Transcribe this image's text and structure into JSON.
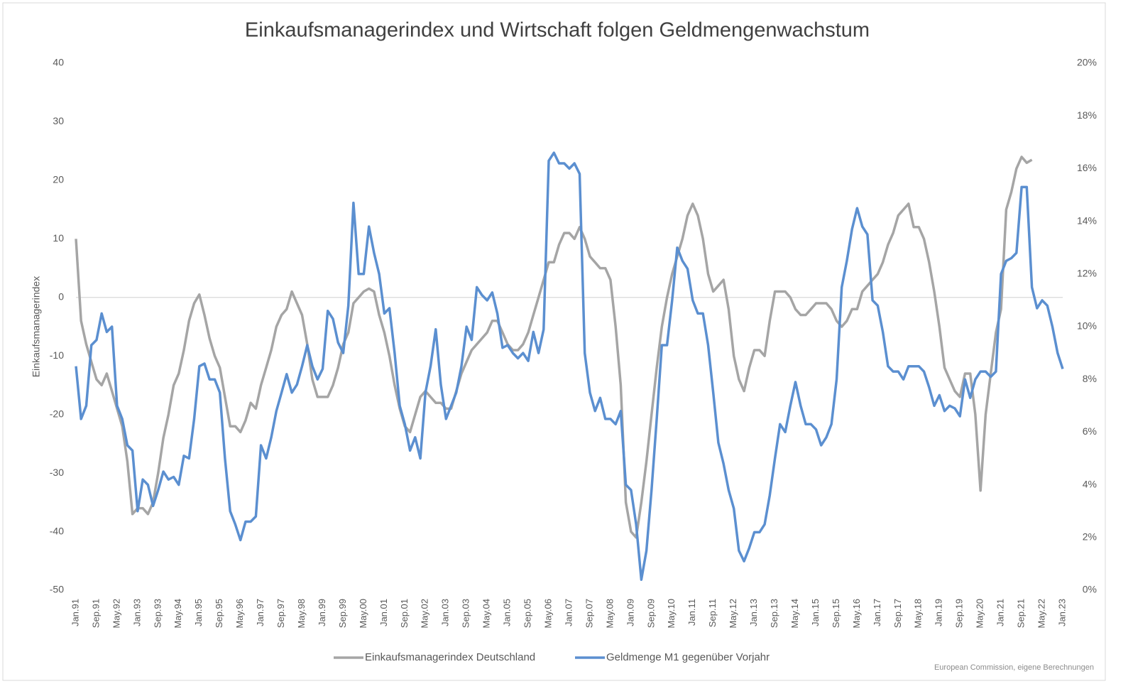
{
  "chart_data": {
    "type": "line",
    "title": "Einkaufsmanagerindex und Wirtschaft folgen Geldmengenwachstum",
    "y_label": "Einkaufsmanagerindex",
    "source": "European Commission, eigene Berechnungen",
    "categories": [
      "Jan.91",
      null,
      null,
      null,
      "Sep.91",
      null,
      null,
      null,
      "May.92",
      null,
      null,
      null,
      "Jan.93",
      null,
      null,
      null,
      "Sep.93",
      null,
      null,
      null,
      "May.94",
      null,
      null,
      null,
      "Jan.95",
      null,
      null,
      null,
      "Sep.95",
      null,
      null,
      null,
      "May.96",
      null,
      null,
      null,
      "Jan.97",
      null,
      null,
      null,
      "Sep.97",
      null,
      null,
      null,
      "May.98",
      null,
      null,
      null,
      "Jan.99",
      null,
      null,
      null,
      "Sep.99",
      null,
      null,
      null,
      "May.00",
      null,
      null,
      null,
      "Jan.01",
      null,
      null,
      null,
      "Sep.01",
      null,
      null,
      null,
      "May.02",
      null,
      null,
      null,
      "Jan.03",
      null,
      null,
      null,
      "Sep.03",
      null,
      null,
      null,
      "May.04",
      null,
      null,
      null,
      "Jan.05",
      null,
      null,
      null,
      "Sep.05",
      null,
      null,
      null,
      "May.06",
      null,
      null,
      null,
      "Jan.07",
      null,
      null,
      null,
      "Sep.07",
      null,
      null,
      null,
      "May.08",
      null,
      null,
      null,
      "Jan.09",
      null,
      null,
      null,
      "Sep.09",
      null,
      null,
      null,
      "May.10",
      null,
      null,
      null,
      "Jan.11",
      null,
      null,
      null,
      "Sep.11",
      null,
      null,
      null,
      "May.12",
      null,
      null,
      null,
      "Jan.13",
      null,
      null,
      null,
      "Sep.13",
      null,
      null,
      null,
      "May.14",
      null,
      null,
      null,
      "Jan.15",
      null,
      null,
      null,
      "Sep.15",
      null,
      null,
      null,
      "May.16",
      null,
      null,
      null,
      "Jan.17",
      null,
      null,
      null,
      "Sep.17",
      null,
      null,
      null,
      "May.18",
      null,
      null,
      null,
      "Jan.19",
      null,
      null,
      null,
      "Sep.19",
      null,
      null,
      null,
      "May.20",
      null,
      null,
      null,
      "Jan.21",
      null,
      null,
      null,
      "Sep.21",
      null,
      null,
      null,
      "May.22",
      null,
      null,
      null,
      "Jan.23"
    ],
    "series": [
      {
        "name": "Einkaufsmanagerindex Deutschland",
        "color": "#a5a5a5",
        "values": [
          10,
          -4,
          -8,
          -11,
          -14,
          -15,
          -13,
          -16,
          -19,
          -22,
          -28,
          -37,
          -36,
          -36,
          -37,
          -35,
          -30,
          -24,
          -20,
          -15,
          -13,
          -9,
          -4,
          -1,
          0.5,
          -3,
          -7,
          -10,
          -12,
          -17,
          -22,
          -22,
          -23,
          -21,
          -18,
          -19,
          -15,
          -12,
          -9,
          -5,
          -3,
          -2,
          1,
          -1,
          -3,
          -8,
          -14,
          -17,
          -17,
          -17,
          -15,
          -12,
          -8,
          -6,
          -1,
          0,
          1,
          1.5,
          1,
          -3,
          -6,
          -10,
          -15,
          -19,
          -22,
          -23,
          -20,
          -17,
          -16,
          -17,
          -18,
          -18,
          -19,
          -19,
          -16,
          -13,
          -11,
          -9,
          -8,
          -7,
          -6,
          -4,
          -4,
          -6,
          -8,
          -9,
          -9,
          -8,
          -6,
          -3,
          0,
          3,
          6,
          6,
          9,
          11,
          11,
          10,
          12,
          10,
          7,
          6,
          5,
          5,
          3,
          -5,
          -15,
          -35,
          -40,
          -41,
          -35,
          -28,
          -20,
          -12,
          -5,
          0,
          4,
          7,
          10,
          14,
          16,
          14,
          10,
          4,
          1,
          2,
          3,
          -2,
          -10,
          -14,
          -16,
          -12,
          -9,
          -9,
          -10,
          -4,
          1,
          1,
          1,
          0,
          -2,
          -3,
          -3,
          -2,
          -1,
          -1,
          -1,
          -2,
          -4,
          -5,
          -4,
          -2,
          -2,
          1,
          2,
          3,
          4,
          6,
          9,
          11,
          14,
          15,
          16,
          12,
          12,
          10,
          6,
          1,
          -5,
          -12,
          -14,
          -16,
          -17,
          -13,
          -13,
          -20,
          -33,
          -20,
          -13,
          -6,
          -2,
          15,
          18,
          22,
          24,
          23,
          23.5,
          null,
          null,
          null,
          null,
          null,
          null
        ]
      },
      {
        "name": "Geldmenge M1 gegenüber Vorjahr",
        "color": "#5b8fd0",
        "axis": "y2",
        "values": [
          8.5,
          6.5,
          7,
          9.3,
          9.5,
          10.5,
          9.8,
          10,
          7,
          6.5,
          5.5,
          5.3,
          3,
          4.2,
          4,
          3.2,
          3.8,
          4.5,
          4.2,
          4.3,
          4,
          5.1,
          5,
          6.5,
          8.5,
          8.6,
          8,
          8,
          7.5,
          5,
          3,
          2.5,
          1.9,
          2.6,
          2.6,
          2.8,
          5.5,
          5,
          5.8,
          6.8,
          7.5,
          8.2,
          7.5,
          7.8,
          8.5,
          9.3,
          8.5,
          8,
          8.4,
          10.6,
          10.3,
          9.4,
          9,
          10.8,
          14.7,
          12,
          12,
          13.8,
          12.8,
          12,
          10.5,
          10.7,
          9,
          7,
          6.3,
          5.3,
          5.8,
          5,
          7.5,
          8.5,
          9.9,
          7.8,
          6.5,
          7,
          7.5,
          8.5,
          10,
          9.5,
          11.5,
          11.2,
          11,
          11.3,
          10.5,
          9.2,
          9.3,
          9,
          8.8,
          9,
          8.7,
          9.8,
          9,
          9.9,
          16.3,
          16.6,
          16.2,
          16.2,
          16,
          16.2,
          15.8,
          9,
          7.5,
          6.8,
          7.3,
          6.5,
          6.5,
          6.3,
          6.8,
          4,
          3.8,
          2.5,
          0.4,
          1.5,
          3.8,
          6.5,
          9.3,
          9.3,
          11,
          13,
          12.5,
          12.2,
          11,
          10.5,
          10.5,
          9.3,
          7.5,
          5.6,
          4.8,
          3.8,
          3.1,
          1.5,
          1.1,
          1.6,
          2.2,
          2.2,
          2.5,
          3.6,
          5,
          6.3,
          6,
          7,
          7.9,
          7,
          6.3,
          6.3,
          6.1,
          5.5,
          5.8,
          6.3,
          8,
          11.5,
          12.5,
          13.7,
          14.5,
          13.8,
          13.5,
          11,
          10.8,
          9.8,
          8.5,
          8.3,
          8.3,
          8,
          8.5,
          8.5,
          8.5,
          8.3,
          7.7,
          7,
          7.4,
          6.8,
          7,
          6.9,
          6.6,
          8,
          7.3,
          8,
          8.3,
          8.3,
          8.1,
          8.3,
          12,
          12.5,
          12.6,
          12.8,
          15.3,
          15.3,
          11.5,
          10.7,
          11,
          10.8,
          10,
          9,
          8.4
        ]
      }
    ],
    "ylim": [
      -50,
      40
    ],
    "yticks": [
      -50,
      -40,
      -30,
      -20,
      -10,
      0,
      10,
      20,
      30,
      40
    ],
    "y2lim": [
      0,
      20
    ],
    "y2ticks": [
      {
        "value": 0,
        "label": "0%"
      },
      {
        "value": 2,
        "label": "2%"
      },
      {
        "value": 4,
        "label": "4%"
      },
      {
        "value": 6,
        "label": "6%"
      },
      {
        "value": 8,
        "label": "8%"
      },
      {
        "value": 10,
        "label": "10%"
      },
      {
        "value": 12,
        "label": "12%"
      },
      {
        "value": 14,
        "label": "14%"
      },
      {
        "value": 16,
        "label": "16%"
      },
      {
        "value": 18,
        "label": "18%"
      },
      {
        "value": 20,
        "label": "20%"
      }
    ],
    "legend": "bottom"
  }
}
